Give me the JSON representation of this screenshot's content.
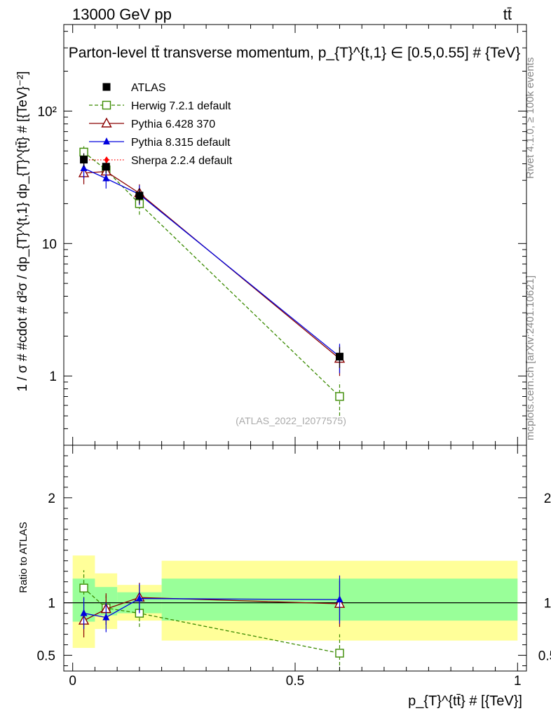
{
  "header": {
    "energy_label": "13000 GeV pp",
    "process_label": "tt̄"
  },
  "side_labels": {
    "rivet": "Rivet 4.1.0, ≥ 100k events",
    "mcplots": "mcplots.cern.ch [arXiv:2401.10621]"
  },
  "chart_data": {
    "type": "line",
    "title": "Parton-level tt̄ transverse momentum, p_{T}^{t,1} ∈ [0.5,0.55] # {TeV}",
    "watermark": "(ATLAS_2022_I2077575)",
    "xlabel": "p_{T}^{tt̄} # [{TeV}]",
    "ylabel_main": "1 / σ # #cdot # d²σ / dp_{T}^{t,1} dp_{T}^{tt̄} # [{TeV}⁻²]",
    "ylabel_ratio": "Ratio to ATLAS",
    "xlim": [
      -0.02,
      1.02
    ],
    "ylim_main": [
      0.3,
      450
    ],
    "ylim_ratio": [
      0.35,
      2.5
    ],
    "x_ticks": [
      {
        "value": 0,
        "label": "0"
      },
      {
        "value": 0.5,
        "label": "0.5"
      },
      {
        "value": 1,
        "label": "1"
      }
    ],
    "y_ticks_main": [
      {
        "value": 1,
        "label": "1"
      },
      {
        "value": 10,
        "label": "10"
      },
      {
        "value": 100,
        "label": "10²"
      }
    ],
    "y_ticks_ratio": [
      {
        "value": 0.5,
        "label": "0.5"
      },
      {
        "value": 1,
        "label": "1"
      },
      {
        "value": 2,
        "label": "2"
      }
    ],
    "bins": [
      {
        "xlow": 0.0,
        "xhigh": 0.05,
        "band_inner": [
          0.82,
          1.23
        ],
        "band_outer": [
          0.57,
          1.45
        ]
      },
      {
        "xlow": 0.05,
        "xhigh": 0.1,
        "band_inner": [
          0.88,
          1.15
        ],
        "band_outer": [
          0.75,
          1.28
        ]
      },
      {
        "xlow": 0.1,
        "xhigh": 0.2,
        "band_inner": [
          0.9,
          1.1
        ],
        "band_outer": [
          0.83,
          1.17
        ]
      },
      {
        "xlow": 0.2,
        "xhigh": 1.0,
        "band_inner": [
          0.83,
          1.23
        ],
        "band_outer": [
          0.64,
          1.4
        ]
      }
    ],
    "series": [
      {
        "name": "ATLAS",
        "color": "#000000",
        "marker": "square-filled",
        "line": "none",
        "x": [
          0.025,
          0.075,
          0.15,
          0.6
        ],
        "y": [
          43,
          38,
          23,
          1.4
        ],
        "yerr": [
          5,
          4,
          3,
          0.25
        ],
        "ratio": [
          1,
          1,
          1,
          1
        ],
        "ratio_err": [
          0,
          0,
          0,
          0
        ]
      },
      {
        "name": "Herwig 7.2.1 default",
        "color": "#3a8a00",
        "marker": "square-open",
        "line": "dashed",
        "x": [
          0.025,
          0.075,
          0.15,
          0.6
        ],
        "y": [
          49,
          36,
          20,
          0.7
        ],
        "yerr": [
          7,
          5,
          3.5,
          0.2
        ],
        "ratio": [
          1.14,
          0.95,
          0.9,
          0.52
        ],
        "ratio_err": [
          0.17,
          0.12,
          0.13,
          0.18
        ]
      },
      {
        "name": "Pythia 6.428 370",
        "color": "#8b0000",
        "marker": "triangle-open",
        "line": "solid",
        "x": [
          0.025,
          0.075,
          0.15,
          0.6
        ],
        "y": [
          34,
          35,
          24,
          1.35
        ],
        "yerr": [
          6,
          5,
          4,
          0.35
        ],
        "ratio": [
          0.83,
          0.94,
          1.05,
          0.99
        ],
        "ratio_err": [
          0.16,
          0.15,
          0.14,
          0.22
        ]
      },
      {
        "name": "Pythia 8.315 default",
        "color": "#0000dd",
        "marker": "triangle-filled",
        "line": "solid",
        "x": [
          0.025,
          0.075,
          0.15,
          0.6
        ],
        "y": [
          37,
          31,
          23.5,
          1.4
        ],
        "yerr": [
          6,
          5,
          4,
          0.35
        ],
        "ratio": [
          0.9,
          0.86,
          1.04,
          1.03
        ],
        "ratio_err": [
          0.15,
          0.14,
          0.14,
          0.23
        ]
      },
      {
        "name": "Sherpa 2.2.4 default",
        "color": "#ff0000",
        "marker": "diamond-filled",
        "line": "dotted",
        "x": [],
        "y": [],
        "yerr": [],
        "ratio": [],
        "ratio_err": []
      }
    ]
  }
}
